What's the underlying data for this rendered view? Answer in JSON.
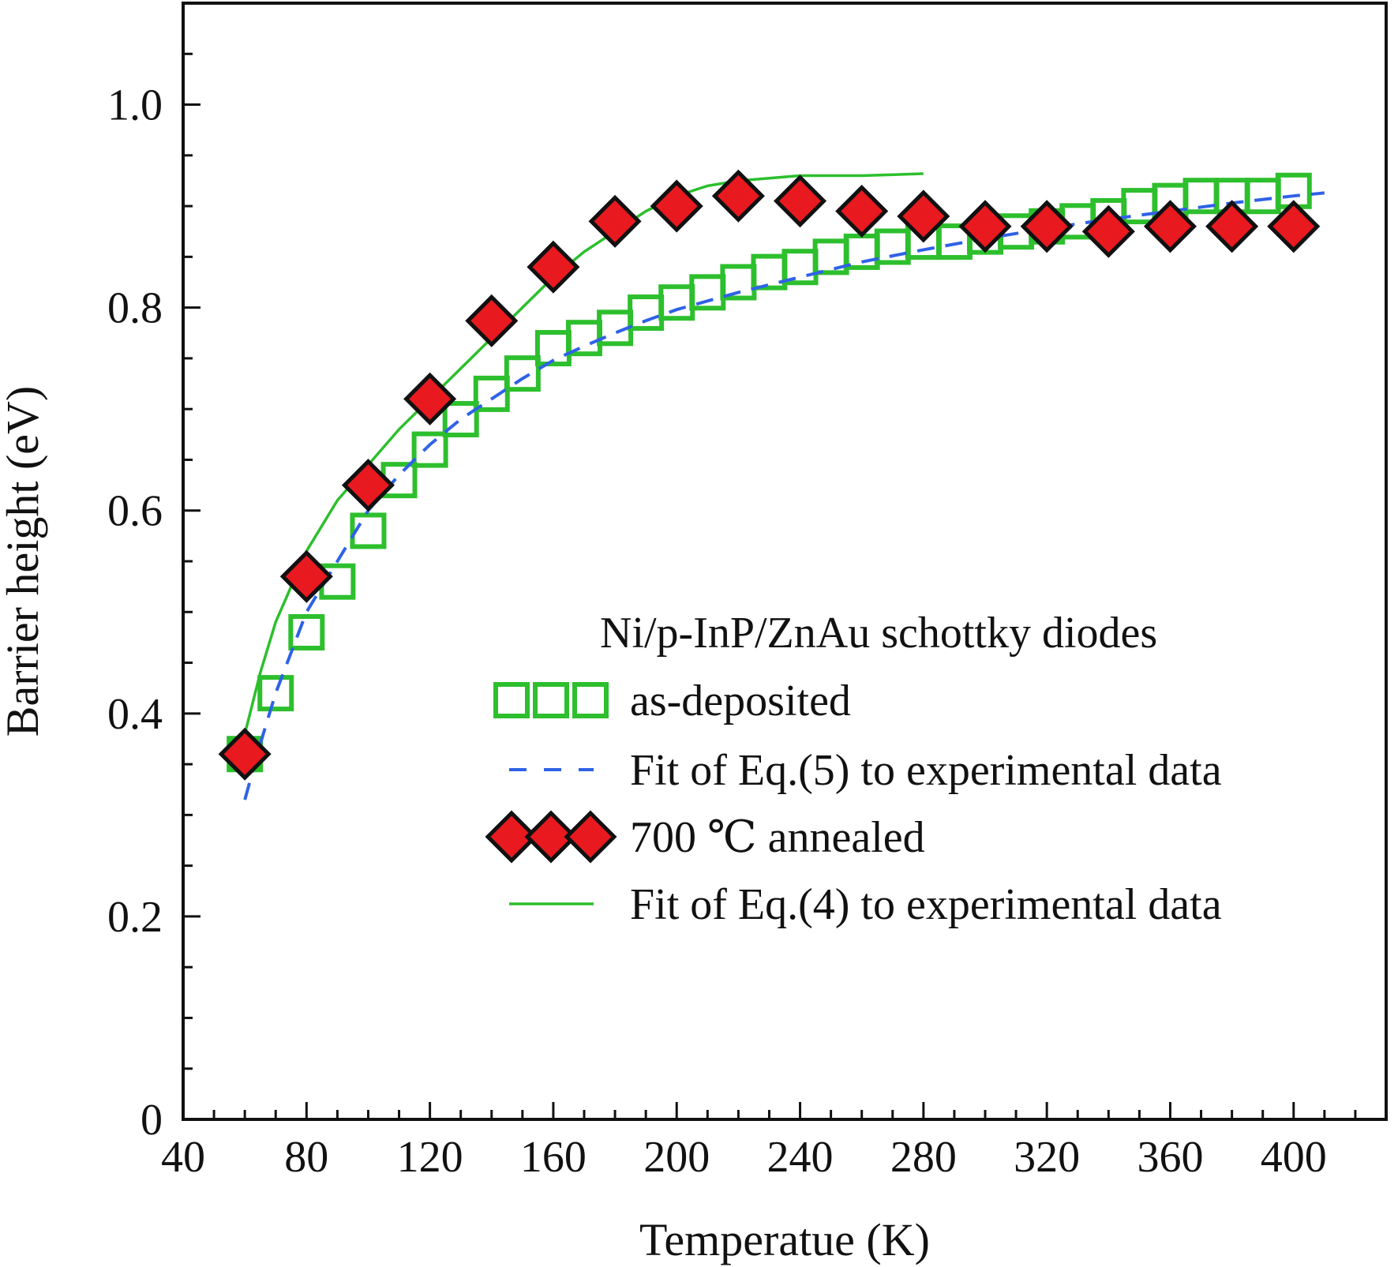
{
  "chart_data": {
    "type": "scatter",
    "title": "",
    "xlabel": "Temperatue (K)",
    "ylabel": "Barrier height (eV)",
    "xlim": [
      40,
      430
    ],
    "ylim": [
      0,
      1.1
    ],
    "x_ticks": [
      40,
      80,
      120,
      160,
      200,
      240,
      280,
      320,
      360,
      400
    ],
    "x_tick_labels": [
      "40",
      "80",
      "120",
      "160",
      "200",
      "240",
      "280",
      "320",
      "360",
      "400"
    ],
    "y_ticks": [
      0,
      0.2,
      0.4,
      0.6,
      0.8,
      1.0
    ],
    "y_tick_labels": [
      "0",
      "0.2",
      "0.4",
      "0.6",
      "0.8",
      "1.0"
    ],
    "grid": false,
    "legend_title": "Ni/p-InP/ZnAu schottky diodes",
    "legend_position": "lower-right",
    "series": [
      {
        "name": "as-deposited",
        "kind": "markers",
        "marker": "square-open",
        "color": "#2dbf2d",
        "x": [
          60,
          70,
          80,
          90,
          100,
          110,
          120,
          130,
          140,
          150,
          160,
          170,
          180,
          190,
          200,
          210,
          220,
          230,
          240,
          250,
          260,
          270,
          280,
          290,
          300,
          310,
          320,
          330,
          340,
          350,
          360,
          370,
          380,
          390,
          400
        ],
        "y": [
          0.36,
          0.42,
          0.48,
          0.53,
          0.58,
          0.63,
          0.66,
          0.69,
          0.715,
          0.735,
          0.76,
          0.77,
          0.78,
          0.795,
          0.805,
          0.815,
          0.825,
          0.835,
          0.84,
          0.85,
          0.855,
          0.86,
          0.865,
          0.865,
          0.87,
          0.875,
          0.88,
          0.885,
          0.89,
          0.9,
          0.905,
          0.91,
          0.91,
          0.91,
          0.915
        ]
      },
      {
        "name": "Fit of Eq.(5) to experimental data",
        "kind": "line",
        "line_style": "dashed",
        "color": "#2f62e6",
        "x": [
          60,
          65,
          70,
          75,
          80,
          90,
          100,
          110,
          120,
          130,
          140,
          150,
          160,
          170,
          180,
          190,
          200,
          220,
          240,
          260,
          280,
          300,
          320,
          340,
          360,
          380,
          400,
          410
        ],
        "y": [
          0.315,
          0.37,
          0.42,
          0.46,
          0.5,
          0.55,
          0.6,
          0.635,
          0.665,
          0.69,
          0.71,
          0.73,
          0.748,
          0.762,
          0.775,
          0.787,
          0.798,
          0.815,
          0.83,
          0.845,
          0.857,
          0.868,
          0.878,
          0.887,
          0.895,
          0.903,
          0.91,
          0.913
        ]
      },
      {
        "name": "700 ℃ annealed",
        "kind": "markers",
        "marker": "diamond-filled",
        "color": "#e8191f",
        "x": [
          60,
          80,
          100,
          120,
          140,
          160,
          180,
          200,
          220,
          240,
          260,
          280,
          300,
          320,
          340,
          360,
          380,
          400
        ],
        "y": [
          0.36,
          0.535,
          0.625,
          0.71,
          0.787,
          0.84,
          0.885,
          0.9,
          0.91,
          0.905,
          0.895,
          0.89,
          0.88,
          0.88,
          0.875,
          0.88,
          0.88,
          0.88
        ]
      },
      {
        "name": "Fit of Eq.(4) to experimental data",
        "kind": "line",
        "line_style": "solid",
        "color": "#2dbf2d",
        "x": [
          60,
          65,
          70,
          75,
          80,
          90,
          100,
          110,
          120,
          130,
          140,
          150,
          160,
          170,
          180,
          190,
          200,
          210,
          220,
          240,
          260,
          280
        ],
        "y": [
          0.38,
          0.44,
          0.49,
          0.525,
          0.56,
          0.61,
          0.645,
          0.68,
          0.71,
          0.74,
          0.77,
          0.8,
          0.83,
          0.855,
          0.875,
          0.895,
          0.91,
          0.92,
          0.925,
          0.93,
          0.93,
          0.932
        ]
      }
    ]
  }
}
